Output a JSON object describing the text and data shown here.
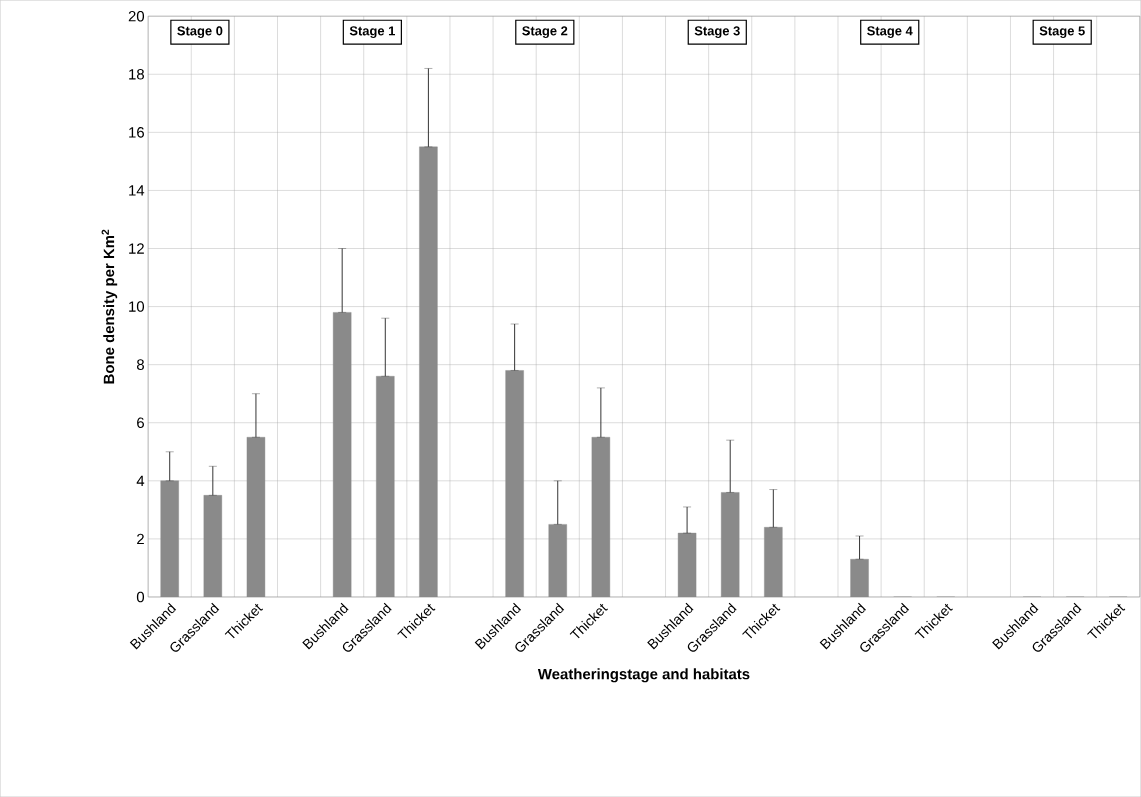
{
  "chart_data": {
    "type": "bar",
    "xlabel": "Weatheringstage and habitats",
    "ylabel": "Bone density per Km$^{2}$",
    "categories": [
      "Bushland",
      "Grassland",
      "Thicket",
      null,
      "Bushland",
      "Grassland",
      "Thicket",
      null,
      "Bushland",
      "Grassland",
      "Thicket",
      null,
      "Bushland",
      "Grassland",
      "Thicket",
      null,
      "Bushland",
      "Grassland",
      "Thicket",
      null,
      "Bushland",
      "Grassland",
      "Thicket"
    ],
    "values": [
      4.0,
      3.5,
      5.5,
      null,
      9.8,
      7.6,
      15.5,
      null,
      7.8,
      2.5,
      5.5,
      null,
      2.2,
      3.6,
      2.4,
      null,
      1.3,
      0,
      0,
      null,
      0,
      0,
      0
    ],
    "errors": [
      [
        4.0,
        5.0
      ],
      [
        3.5,
        4.5
      ],
      [
        5.5,
        7.0
      ],
      null,
      [
        9.8,
        12.0
      ],
      [
        7.6,
        9.6
      ],
      [
        15.5,
        18.2
      ],
      null,
      [
        7.8,
        9.4
      ],
      [
        2.5,
        4.0
      ],
      [
        5.5,
        7.2
      ],
      null,
      [
        2.2,
        3.1
      ],
      [
        3.6,
        5.4
      ],
      [
        2.4,
        3.7
      ],
      null,
      [
        1.3,
        2.1
      ],
      null,
      null,
      null,
      null,
      null,
      null
    ],
    "color": "#8a8a8a",
    "ylim": [
      0,
      20
    ],
    "yticks": [
      0,
      2,
      4,
      6,
      8,
      10,
      12,
      14,
      16,
      18,
      20
    ],
    "grid": true,
    "annotations": [
      "Stage 0",
      "Stage 1",
      "Stage 2",
      "Stage 3",
      "Stage 4",
      "Stage 5"
    ]
  }
}
